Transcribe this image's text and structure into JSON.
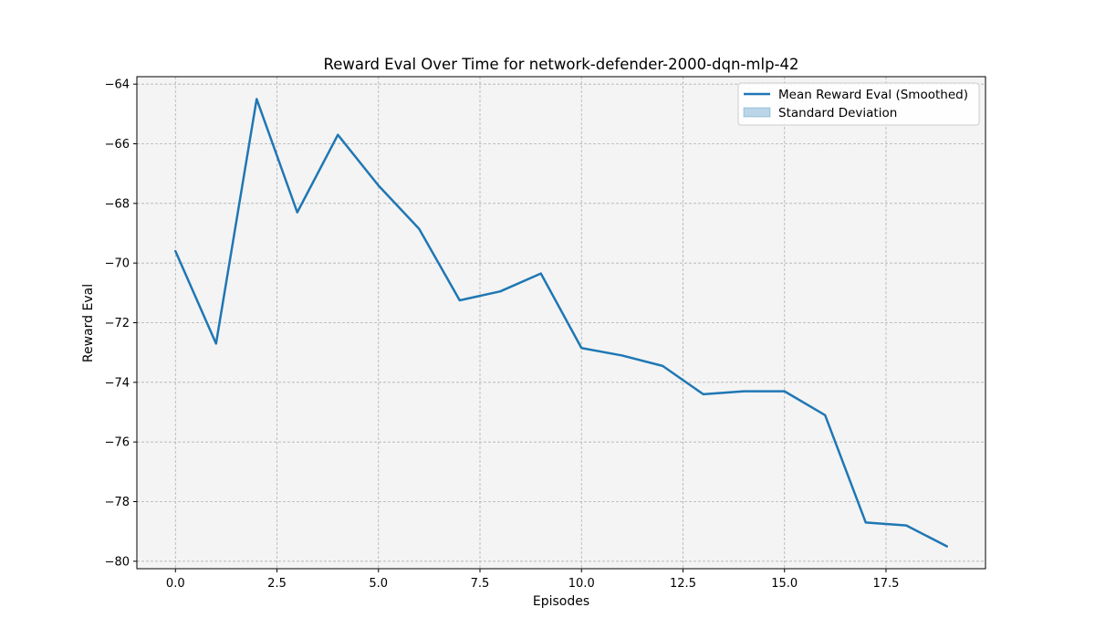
{
  "chart_data": {
    "type": "line",
    "title": "Reward Eval Over Time for network-defender-2000-dqn-mlp-42",
    "xlabel": "Episodes",
    "ylabel": "Reward Eval",
    "xlim": [
      -0.95,
      19.95
    ],
    "ylim": [
      -80.25,
      -63.75
    ],
    "xticks": [
      0,
      2.5,
      5,
      7.5,
      10,
      12.5,
      15,
      17.5
    ],
    "xtick_labels": [
      "0.0",
      "2.5",
      "5.0",
      "7.5",
      "10.0",
      "12.5",
      "15.0",
      "17.5"
    ],
    "yticks": [
      -80,
      -78,
      -76,
      -74,
      -72,
      -70,
      -68,
      -66,
      -64
    ],
    "ytick_labels": [
      "−80",
      "−78",
      "−76",
      "−74",
      "−72",
      "−70",
      "−68",
      "−66",
      "−64"
    ],
    "grid": true,
    "legend_position": "top-right",
    "x": [
      0,
      1,
      2,
      3,
      4,
      5,
      6,
      7,
      8,
      9,
      10,
      11,
      12,
      13,
      14,
      15,
      16,
      17,
      18,
      19
    ],
    "series": [
      {
        "name": "Mean Reward Eval (Smoothed)",
        "color": "#1f77b4",
        "values": [
          -69.6,
          -72.7,
          -64.5,
          -68.3,
          -65.7,
          -67.4,
          -68.85,
          -71.25,
          -70.95,
          -70.35,
          -72.85,
          -73.1,
          -73.45,
          -74.4,
          -74.3,
          -74.3,
          -75.1,
          -78.7,
          -78.8,
          -79.5
        ]
      }
    ],
    "legend": [
      {
        "label": "Mean Reward Eval (Smoothed)",
        "kind": "line",
        "color": "#1f77b4"
      },
      {
        "label": "Standard Deviation",
        "kind": "patch",
        "color": "#1f77b4"
      }
    ],
    "colors": {
      "background": "#ffffff",
      "plot_background": "#f4f4f4",
      "grid": "#b0b0b0"
    }
  }
}
